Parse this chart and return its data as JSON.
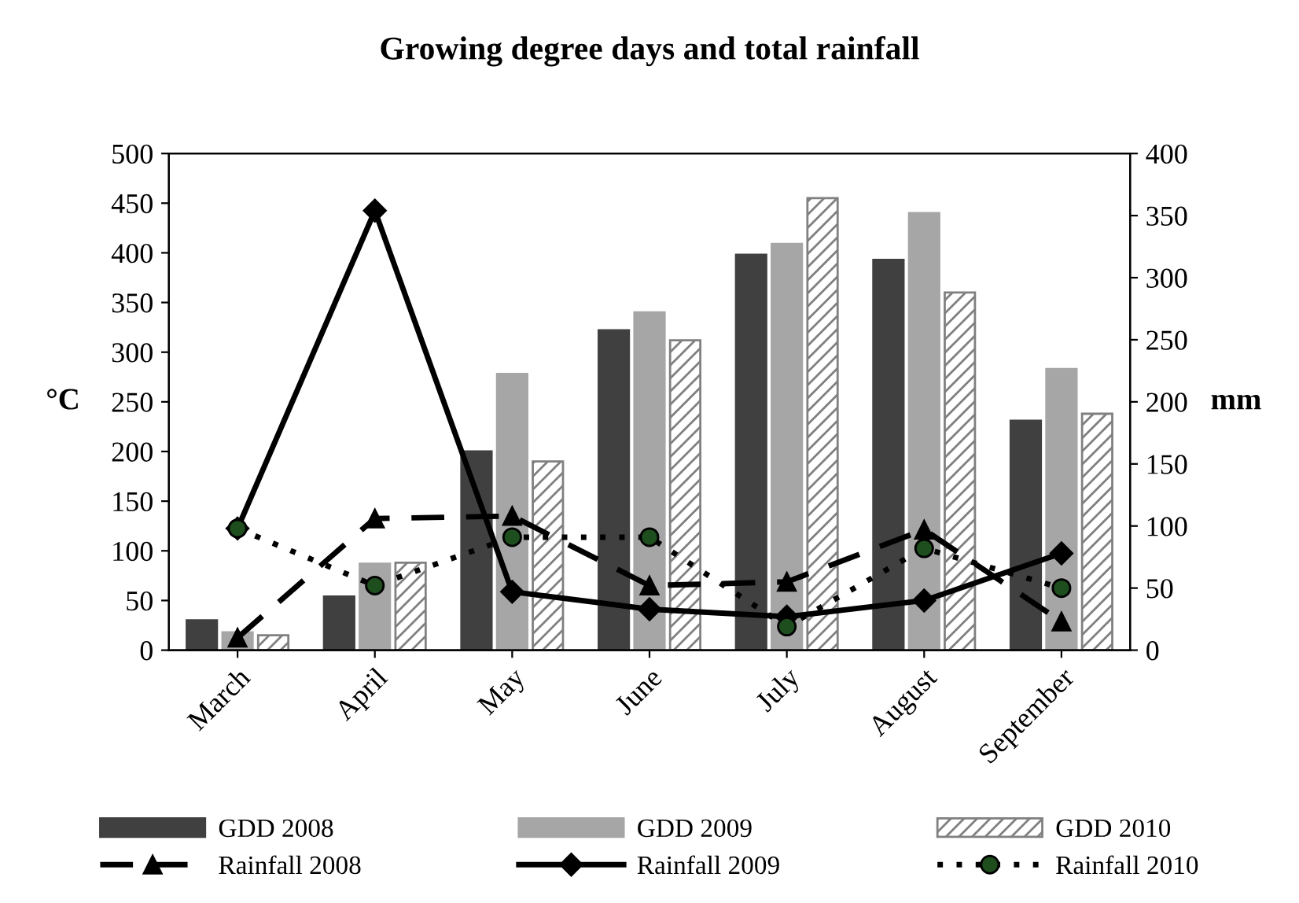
{
  "chart_data": {
    "type": "bar",
    "title": "Growing degree days and total rainfall",
    "ylabel": "°C",
    "y2label": "mm",
    "categories": [
      "March",
      "April",
      "May",
      "June",
      "July",
      "August",
      "September"
    ],
    "series": [
      {
        "name": "GDD 2008",
        "color": "#404040",
        "values": [
          30,
          54,
          200,
          322,
          398,
          393,
          231
        ]
      },
      {
        "name": "GDD 2009",
        "color": "#a6a6a6",
        "values": [
          18,
          87,
          278,
          340,
          409,
          440,
          283
        ]
      },
      {
        "name": "GDD 2010",
        "color": "#808080",
        "values": [
          15,
          88,
          190,
          312,
          455,
          360,
          238
        ]
      },
      {
        "name": "Rainfall 2008",
        "type": "line",
        "axis": "y2",
        "color": "#000000",
        "marker": "triangle",
        "line_style": "dashed",
        "values": [
          10,
          106,
          108,
          52,
          55,
          97,
          23
        ]
      },
      {
        "name": "Rainfall 2009",
        "type": "line",
        "axis": "y2",
        "color": "#000000",
        "marker": "diamond",
        "line_style": "solid",
        "values": [
          98,
          354,
          47,
          33,
          27,
          40,
          78
        ]
      },
      {
        "name": "Rainfall 2010",
        "type": "line",
        "axis": "y2",
        "color": "#000000",
        "marker": "circle",
        "line_style": "dotted",
        "values": [
          98,
          52,
          91,
          91,
          19,
          82,
          50
        ]
      }
    ],
    "ylim": [
      0,
      500
    ],
    "yticks": [
      0,
      50,
      100,
      150,
      200,
      250,
      300,
      350,
      400,
      450,
      500
    ],
    "y2lim": [
      0,
      400
    ],
    "y2ticks": [
      0,
      50,
      100,
      150,
      200,
      250,
      300,
      350,
      400
    ],
    "grid": false,
    "legend": "bottom"
  }
}
